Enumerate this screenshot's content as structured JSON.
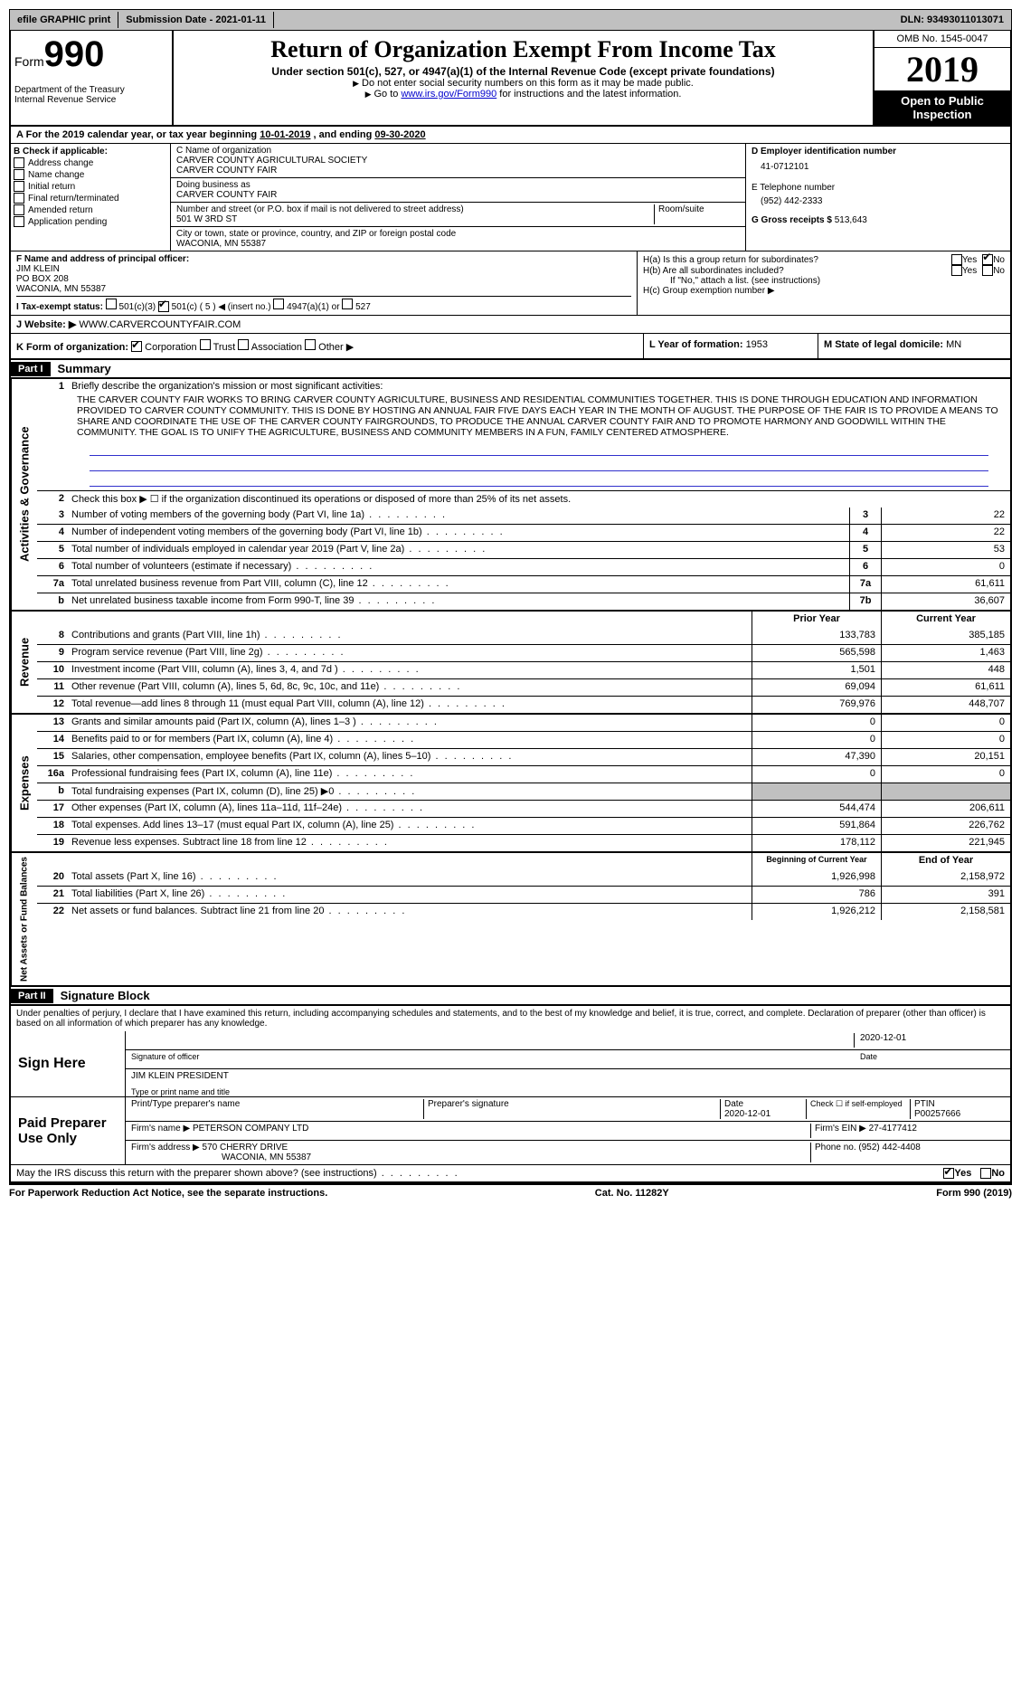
{
  "topbar": {
    "efile": "efile GRAPHIC print",
    "submission_label": "Submission Date - ",
    "submission_date": "2021-01-11",
    "dln_label": "DLN: ",
    "dln": "93493011013071"
  },
  "header": {
    "form_label": "Form",
    "form_number": "990",
    "dept1": "Department of the Treasury",
    "dept2": "Internal Revenue Service",
    "title": "Return of Organization Exempt From Income Tax",
    "subtitle": "Under section 501(c), 527, or 4947(a)(1) of the Internal Revenue Code (except private foundations)",
    "note1": "Do not enter social security numbers on this form as it may be made public.",
    "note2_pre": "Go to ",
    "note2_link": "www.irs.gov/Form990",
    "note2_post": " for instructions and the latest information.",
    "omb": "OMB No. 1545-0047",
    "year": "2019",
    "inspect": "Open to Public Inspection"
  },
  "line_a": {
    "text": "For the 2019 calendar year, or tax year beginning ",
    "begin": "10-01-2019",
    "mid": " , and ending ",
    "end": "09-30-2020"
  },
  "section_b": {
    "title": "B Check if applicable:",
    "items": [
      "Address change",
      "Name change",
      "Initial return",
      "Final return/terminated",
      "Amended return",
      "Application pending"
    ]
  },
  "section_c": {
    "name_label": "C Name of organization",
    "name1": "CARVER COUNTY AGRICULTURAL SOCIETY",
    "name2": "CARVER COUNTY FAIR",
    "dba_label": "Doing business as",
    "dba": "CARVER COUNTY FAIR",
    "street_label": "Number and street (or P.O. box if mail is not delivered to street address)",
    "room_label": "Room/suite",
    "street": "501 W 3RD ST",
    "city_label": "City or town, state or province, country, and ZIP or foreign postal code",
    "city": "WACONIA, MN  55387"
  },
  "section_d": {
    "ein_label": "D Employer identification number",
    "ein": "41-0712101",
    "phone_label": "E Telephone number",
    "phone": "(952) 442-2333",
    "gross_label": "G Gross receipts $ ",
    "gross": "513,643"
  },
  "section_f": {
    "label": "F  Name and address of principal officer:",
    "name": "JIM KLEIN",
    "addr1": "PO BOX 208",
    "addr2": "WACONIA, MN  55387"
  },
  "section_h": {
    "ha_label": "H(a)  Is this a group return for subordinates?",
    "hb_label": "H(b)  Are all subordinates included?",
    "hb_note": "If \"No,\" attach a list. (see instructions)",
    "hc_label": "H(c)  Group exemption number ▶"
  },
  "tax_exempt": {
    "label": "I   Tax-exempt status:",
    "opt1": "501(c)(3)",
    "opt2_pre": "501(c) ( ",
    "opt2_val": "5",
    "opt2_post": " ) ◀ (insert no.)",
    "opt3": "4947(a)(1) or",
    "opt4": "527"
  },
  "website": {
    "label": "J   Website: ▶",
    "value": "WWW.CARVERCOUNTYFAIR.COM"
  },
  "section_k": {
    "label": "K Form of organization:",
    "opts": [
      "Corporation",
      "Trust",
      "Association",
      "Other ▶"
    ]
  },
  "section_l": {
    "label": "L Year of formation: ",
    "value": "1953"
  },
  "section_m": {
    "label": "M State of legal domicile: ",
    "value": "MN"
  },
  "part1": {
    "label": "Part I",
    "title": "Summary",
    "vert_activities": "Activities & Governance",
    "vert_revenue": "Revenue",
    "vert_expenses": "Expenses",
    "vert_netassets": "Net Assets or Fund Balances",
    "line1_label": "Briefly describe the organization's mission or most significant activities:",
    "mission": "THE CARVER COUNTY FAIR WORKS TO BRING CARVER COUNTY AGRICULTURE, BUSINESS AND RESIDENTIAL COMMUNITIES TOGETHER. THIS IS DONE THROUGH EDUCATION AND INFORMATION PROVIDED TO CARVER COUNTY COMMUNITY. THIS IS DONE BY HOSTING AN ANNUAL FAIR FIVE DAYS EACH YEAR IN THE MONTH OF AUGUST. THE PURPOSE OF THE FAIR IS TO PROVIDE A MEANS TO SHARE AND COORDINATE THE USE OF THE CARVER COUNTY FAIRGROUNDS, TO PRODUCE THE ANNUAL CARVER COUNTY FAIR AND TO PROMOTE HARMONY AND GOODWILL WITHIN THE COMMUNITY. THE GOAL IS TO UNIFY THE AGRICULTURE, BUSINESS AND COMMUNITY MEMBERS IN A FUN, FAMILY CENTERED ATMOSPHERE.",
    "line2": "Check this box ▶ ☐ if the organization discontinued its operations or disposed of more than 25% of its net assets.",
    "governance": [
      {
        "n": "3",
        "t": "Number of voting members of the governing body (Part VI, line 1a)",
        "b": "3",
        "v": "22"
      },
      {
        "n": "4",
        "t": "Number of independent voting members of the governing body (Part VI, line 1b)",
        "b": "4",
        "v": "22"
      },
      {
        "n": "5",
        "t": "Total number of individuals employed in calendar year 2019 (Part V, line 2a)",
        "b": "5",
        "v": "53"
      },
      {
        "n": "6",
        "t": "Total number of volunteers (estimate if necessary)",
        "b": "6",
        "v": "0"
      },
      {
        "n": "7a",
        "t": "Total unrelated business revenue from Part VIII, column (C), line 12",
        "b": "7a",
        "v": "61,611"
      },
      {
        "n": "b",
        "t": "Net unrelated business taxable income from Form 990-T, line 39",
        "b": "7b",
        "v": "36,607"
      }
    ],
    "col_prior": "Prior Year",
    "col_current": "Current Year",
    "revenue": [
      {
        "n": "8",
        "t": "Contributions and grants (Part VIII, line 1h)",
        "p": "133,783",
        "c": "385,185"
      },
      {
        "n": "9",
        "t": "Program service revenue (Part VIII, line 2g)",
        "p": "565,598",
        "c": "1,463"
      },
      {
        "n": "10",
        "t": "Investment income (Part VIII, column (A), lines 3, 4, and 7d )",
        "p": "1,501",
        "c": "448"
      },
      {
        "n": "11",
        "t": "Other revenue (Part VIII, column (A), lines 5, 6d, 8c, 9c, 10c, and 11e)",
        "p": "69,094",
        "c": "61,611"
      },
      {
        "n": "12",
        "t": "Total revenue—add lines 8 through 11 (must equal Part VIII, column (A), line 12)",
        "p": "769,976",
        "c": "448,707"
      }
    ],
    "expenses": [
      {
        "n": "13",
        "t": "Grants and similar amounts paid (Part IX, column (A), lines 1–3 )",
        "p": "0",
        "c": "0"
      },
      {
        "n": "14",
        "t": "Benefits paid to or for members (Part IX, column (A), line 4)",
        "p": "0",
        "c": "0"
      },
      {
        "n": "15",
        "t": "Salaries, other compensation, employee benefits (Part IX, column (A), lines 5–10)",
        "p": "47,390",
        "c": "20,151"
      },
      {
        "n": "16a",
        "t": "Professional fundraising fees (Part IX, column (A), line 11e)",
        "p": "0",
        "c": "0"
      },
      {
        "n": "b",
        "t": "Total fundraising expenses (Part IX, column (D), line 25) ▶0",
        "p": "",
        "c": "",
        "shaded": true
      },
      {
        "n": "17",
        "t": "Other expenses (Part IX, column (A), lines 11a–11d, 11f–24e)",
        "p": "544,474",
        "c": "206,611"
      },
      {
        "n": "18",
        "t": "Total expenses. Add lines 13–17 (must equal Part IX, column (A), line 25)",
        "p": "591,864",
        "c": "226,762"
      },
      {
        "n": "19",
        "t": "Revenue less expenses. Subtract line 18 from line 12",
        "p": "178,112",
        "c": "221,945"
      }
    ],
    "col_begin": "Beginning of Current Year",
    "col_end": "End of Year",
    "netassets": [
      {
        "n": "20",
        "t": "Total assets (Part X, line 16)",
        "p": "1,926,998",
        "c": "2,158,972"
      },
      {
        "n": "21",
        "t": "Total liabilities (Part X, line 26)",
        "p": "786",
        "c": "391"
      },
      {
        "n": "22",
        "t": "Net assets or fund balances. Subtract line 21 from line 20",
        "p": "1,926,212",
        "c": "2,158,581"
      }
    ]
  },
  "part2": {
    "label": "Part II",
    "title": "Signature Block",
    "declaration": "Under penalties of perjury, I declare that I have examined this return, including accompanying schedules and statements, and to the best of my knowledge and belief, it is true, correct, and complete. Declaration of preparer (other than officer) is based on all information of which preparer has any knowledge.",
    "sign_here": "Sign Here",
    "sig_officer": "Signature of officer",
    "sig_date": "2020-12-01",
    "date_label": "Date",
    "officer_name": "JIM KLEIN  PRESIDENT",
    "officer_name_label": "Type or print name and title",
    "paid_label": "Paid Preparer Use Only",
    "prep_name_label": "Print/Type preparer's name",
    "prep_sig_label": "Preparer's signature",
    "prep_date": "2020-12-01",
    "check_if": "Check ☐ if self-employed",
    "ptin_label": "PTIN",
    "ptin": "P00257666",
    "firm_name_label": "Firm's name    ▶ ",
    "firm_name": "PETERSON COMPANY LTD",
    "firm_ein_label": "Firm's EIN ▶ ",
    "firm_ein": "27-4177412",
    "firm_addr_label": "Firm's address ▶ ",
    "firm_addr1": "570 CHERRY DRIVE",
    "firm_addr2": "WACONIA, MN  55387",
    "firm_phone_label": "Phone no. ",
    "firm_phone": "(952) 442-4408",
    "discuss": "May the IRS discuss this return with the preparer shown above? (see instructions)"
  },
  "footer": {
    "left": "For Paperwork Reduction Act Notice, see the separate instructions.",
    "mid": "Cat. No. 11282Y",
    "right": "Form 990 (2019)"
  },
  "labels": {
    "yes": "Yes",
    "no": "No"
  }
}
